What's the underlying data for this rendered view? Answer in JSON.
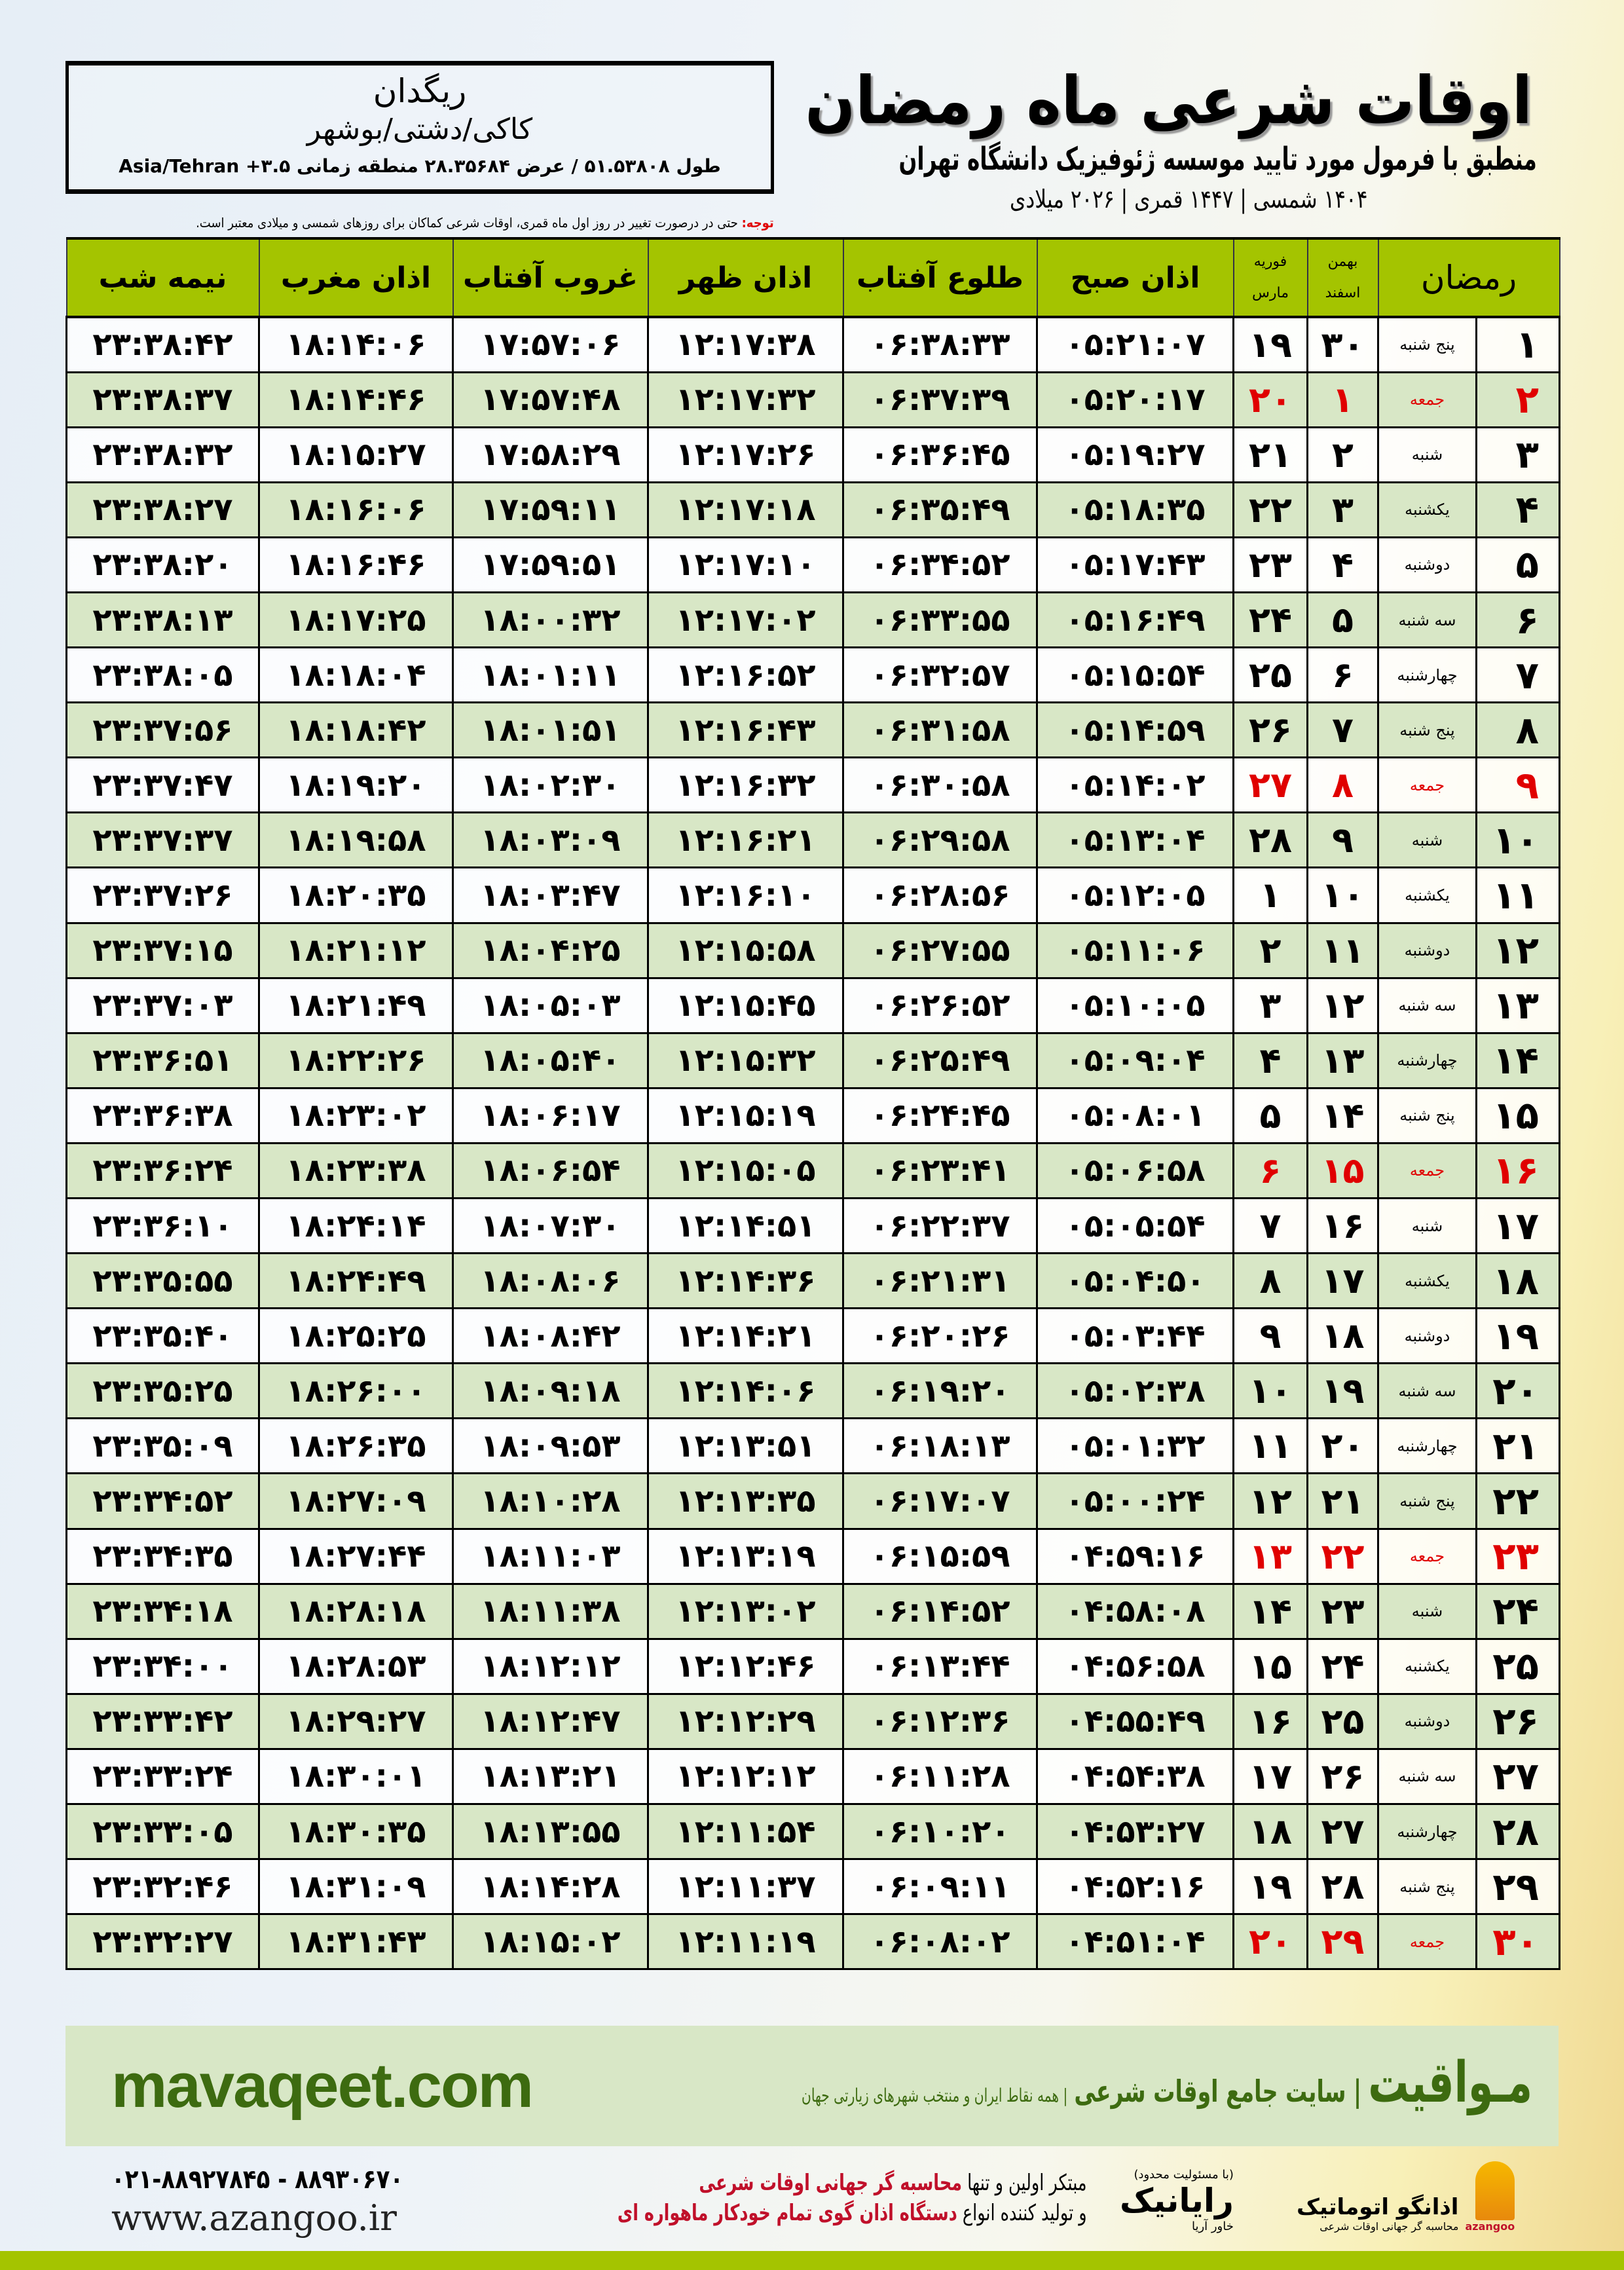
{
  "header": {
    "title": "اوقات شرعی ماه رمضان",
    "subtitle": "منطبق با فرمول مورد تایید موسسه ژئوفیزیک دانشگاه تهران",
    "dates": "۱۴۰۴ شمسی | ۱۴۴۷ قمری | ۲۰۲۶ میلادی"
  },
  "location": {
    "city": "ریگدان",
    "region": "کاکی/دشتی/بوشهر",
    "coords": "طول ۵۱.۵۳۸۰۸ / عرض ۲۸.۳۵۶۸۴ منطقه زمانی ۳.۵+ Asia/Tehran"
  },
  "note": {
    "label": "توجه:",
    "text": " حتی در درصورت تغییر در روز اول ماه قمری، اوقات شرعی کماکان برای روزهای شمسی و میلادی معتبر است."
  },
  "table": {
    "headers": {
      "ramadan": "رمضان",
      "shamsi_top": "بهمن",
      "shamsi_bottom": "اسفند",
      "miladi_top": "فوریه",
      "miladi_bottom": "مارس",
      "fajr": "اذان صبح",
      "sunrise": "طلوع آفتاب",
      "dhuhr": "اذان ظهر",
      "sunset": "غروب آفتاب",
      "maghrib": "اذان مغرب",
      "midnight": "نیمه شب"
    },
    "friday_color": "#e00000",
    "rows": [
      [
        "۱",
        "پنج شنبه",
        "۳۰",
        "۱۹",
        "۰۵:۲۱:۰۷",
        "۰۶:۳۸:۳۳",
        "۱۲:۱۷:۳۸",
        "۱۷:۵۷:۰۶",
        "۱۸:۱۴:۰۶",
        "۲۳:۳۸:۴۲"
      ],
      [
        "۲",
        "جمعه",
        "۱",
        "۲۰",
        "۰۵:۲۰:۱۷",
        "۰۶:۳۷:۳۹",
        "۱۲:۱۷:۳۲",
        "۱۷:۵۷:۴۸",
        "۱۸:۱۴:۴۶",
        "۲۳:۳۸:۳۷"
      ],
      [
        "۳",
        "شنبه",
        "۲",
        "۲۱",
        "۰۵:۱۹:۲۷",
        "۰۶:۳۶:۴۵",
        "۱۲:۱۷:۲۶",
        "۱۷:۵۸:۲۹",
        "۱۸:۱۵:۲۷",
        "۲۳:۳۸:۳۲"
      ],
      [
        "۴",
        "یکشنبه",
        "۳",
        "۲۲",
        "۰۵:۱۸:۳۵",
        "۰۶:۳۵:۴۹",
        "۱۲:۱۷:۱۸",
        "۱۷:۵۹:۱۱",
        "۱۸:۱۶:۰۶",
        "۲۳:۳۸:۲۷"
      ],
      [
        "۵",
        "دوشنبه",
        "۴",
        "۲۳",
        "۰۵:۱۷:۴۳",
        "۰۶:۳۴:۵۲",
        "۱۲:۱۷:۱۰",
        "۱۷:۵۹:۵۱",
        "۱۸:۱۶:۴۶",
        "۲۳:۳۸:۲۰"
      ],
      [
        "۶",
        "سه شنبه",
        "۵",
        "۲۴",
        "۰۵:۱۶:۴۹",
        "۰۶:۳۳:۵۵",
        "۱۲:۱۷:۰۲",
        "۱۸:۰۰:۳۲",
        "۱۸:۱۷:۲۵",
        "۲۳:۳۸:۱۳"
      ],
      [
        "۷",
        "چهارشنبه",
        "۶",
        "۲۵",
        "۰۵:۱۵:۵۴",
        "۰۶:۳۲:۵۷",
        "۱۲:۱۶:۵۲",
        "۱۸:۰۱:۱۱",
        "۱۸:۱۸:۰۴",
        "۲۳:۳۸:۰۵"
      ],
      [
        "۸",
        "پنج شنبه",
        "۷",
        "۲۶",
        "۰۵:۱۴:۵۹",
        "۰۶:۳۱:۵۸",
        "۱۲:۱۶:۴۳",
        "۱۸:۰۱:۵۱",
        "۱۸:۱۸:۴۲",
        "۲۳:۳۷:۵۶"
      ],
      [
        "۹",
        "جمعه",
        "۸",
        "۲۷",
        "۰۵:۱۴:۰۲",
        "۰۶:۳۰:۵۸",
        "۱۲:۱۶:۳۲",
        "۱۸:۰۲:۳۰",
        "۱۸:۱۹:۲۰",
        "۲۳:۳۷:۴۷"
      ],
      [
        "۱۰",
        "شنبه",
        "۹",
        "۲۸",
        "۰۵:۱۳:۰۴",
        "۰۶:۲۹:۵۸",
        "۱۲:۱۶:۲۱",
        "۱۸:۰۳:۰۹",
        "۱۸:۱۹:۵۸",
        "۲۳:۳۷:۳۷"
      ],
      [
        "۱۱",
        "یکشنبه",
        "۱۰",
        "۱",
        "۰۵:۱۲:۰۵",
        "۰۶:۲۸:۵۶",
        "۱۲:۱۶:۱۰",
        "۱۸:۰۳:۴۷",
        "۱۸:۲۰:۳۵",
        "۲۳:۳۷:۲۶"
      ],
      [
        "۱۲",
        "دوشنبه",
        "۱۱",
        "۲",
        "۰۵:۱۱:۰۶",
        "۰۶:۲۷:۵۵",
        "۱۲:۱۵:۵۸",
        "۱۸:۰۴:۲۵",
        "۱۸:۲۱:۱۲",
        "۲۳:۳۷:۱۵"
      ],
      [
        "۱۳",
        "سه شنبه",
        "۱۲",
        "۳",
        "۰۵:۱۰:۰۵",
        "۰۶:۲۶:۵۲",
        "۱۲:۱۵:۴۵",
        "۱۸:۰۵:۰۳",
        "۱۸:۲۱:۴۹",
        "۲۳:۳۷:۰۳"
      ],
      [
        "۱۴",
        "چهارشنبه",
        "۱۳",
        "۴",
        "۰۵:۰۹:۰۴",
        "۰۶:۲۵:۴۹",
        "۱۲:۱۵:۳۲",
        "۱۸:۰۵:۴۰",
        "۱۸:۲۲:۲۶",
        "۲۳:۳۶:۵۱"
      ],
      [
        "۱۵",
        "پنج شنبه",
        "۱۴",
        "۵",
        "۰۵:۰۸:۰۱",
        "۰۶:۲۴:۴۵",
        "۱۲:۱۵:۱۹",
        "۱۸:۰۶:۱۷",
        "۱۸:۲۳:۰۲",
        "۲۳:۳۶:۳۸"
      ],
      [
        "۱۶",
        "جمعه",
        "۱۵",
        "۶",
        "۰۵:۰۶:۵۸",
        "۰۶:۲۳:۴۱",
        "۱۲:۱۵:۰۵",
        "۱۸:۰۶:۵۴",
        "۱۸:۲۳:۳۸",
        "۲۳:۳۶:۲۴"
      ],
      [
        "۱۷",
        "شنبه",
        "۱۶",
        "۷",
        "۰۵:۰۵:۵۴",
        "۰۶:۲۲:۳۷",
        "۱۲:۱۴:۵۱",
        "۱۸:۰۷:۳۰",
        "۱۸:۲۴:۱۴",
        "۲۳:۳۶:۱۰"
      ],
      [
        "۱۸",
        "یکشنبه",
        "۱۷",
        "۸",
        "۰۵:۰۴:۵۰",
        "۰۶:۲۱:۳۱",
        "۱۲:۱۴:۳۶",
        "۱۸:۰۸:۰۶",
        "۱۸:۲۴:۴۹",
        "۲۳:۳۵:۵۵"
      ],
      [
        "۱۹",
        "دوشنبه",
        "۱۸",
        "۹",
        "۰۵:۰۳:۴۴",
        "۰۶:۲۰:۲۶",
        "۱۲:۱۴:۲۱",
        "۱۸:۰۸:۴۲",
        "۱۸:۲۵:۲۵",
        "۲۳:۳۵:۴۰"
      ],
      [
        "۲۰",
        "سه شنبه",
        "۱۹",
        "۱۰",
        "۰۵:۰۲:۳۸",
        "۰۶:۱۹:۲۰",
        "۱۲:۱۴:۰۶",
        "۱۸:۰۹:۱۸",
        "۱۸:۲۶:۰۰",
        "۲۳:۳۵:۲۵"
      ],
      [
        "۲۱",
        "چهارشنبه",
        "۲۰",
        "۱۱",
        "۰۵:۰۱:۳۲",
        "۰۶:۱۸:۱۳",
        "۱۲:۱۳:۵۱",
        "۱۸:۰۹:۵۳",
        "۱۸:۲۶:۳۵",
        "۲۳:۳۵:۰۹"
      ],
      [
        "۲۲",
        "پنج شنبه",
        "۲۱",
        "۱۲",
        "۰۵:۰۰:۲۴",
        "۰۶:۱۷:۰۷",
        "۱۲:۱۳:۳۵",
        "۱۸:۱۰:۲۸",
        "۱۸:۲۷:۰۹",
        "۲۳:۳۴:۵۲"
      ],
      [
        "۲۳",
        "جمعه",
        "۲۲",
        "۱۳",
        "۰۴:۵۹:۱۶",
        "۰۶:۱۵:۵۹",
        "۱۲:۱۳:۱۹",
        "۱۸:۱۱:۰۳",
        "۱۸:۲۷:۴۴",
        "۲۳:۳۴:۳۵"
      ],
      [
        "۲۴",
        "شنبه",
        "۲۳",
        "۱۴",
        "۰۴:۵۸:۰۸",
        "۰۶:۱۴:۵۲",
        "۱۲:۱۳:۰۲",
        "۱۸:۱۱:۳۸",
        "۱۸:۲۸:۱۸",
        "۲۳:۳۴:۱۸"
      ],
      [
        "۲۵",
        "یکشنبه",
        "۲۴",
        "۱۵",
        "۰۴:۵۶:۵۸",
        "۰۶:۱۳:۴۴",
        "۱۲:۱۲:۴۶",
        "۱۸:۱۲:۱۲",
        "۱۸:۲۸:۵۳",
        "۲۳:۳۴:۰۰"
      ],
      [
        "۲۶",
        "دوشنبه",
        "۲۵",
        "۱۶",
        "۰۴:۵۵:۴۹",
        "۰۶:۱۲:۳۶",
        "۱۲:۱۲:۲۹",
        "۱۸:۱۲:۴۷",
        "۱۸:۲۹:۲۷",
        "۲۳:۳۳:۴۲"
      ],
      [
        "۲۷",
        "سه شنبه",
        "۲۶",
        "۱۷",
        "۰۴:۵۴:۳۸",
        "۰۶:۱۱:۲۸",
        "۱۲:۱۲:۱۲",
        "۱۸:۱۳:۲۱",
        "۱۸:۳۰:۰۱",
        "۲۳:۳۳:۲۴"
      ],
      [
        "۲۸",
        "چهارشنبه",
        "۲۷",
        "۱۸",
        "۰۴:۵۳:۲۷",
        "۰۶:۱۰:۲۰",
        "۱۲:۱۱:۵۴",
        "۱۸:۱۳:۵۵",
        "۱۸:۳۰:۳۵",
        "۲۳:۳۳:۰۵"
      ],
      [
        "۲۹",
        "پنج شنبه",
        "۲۸",
        "۱۹",
        "۰۴:۵۲:۱۶",
        "۰۶:۰۹:۱۱",
        "۱۲:۱۱:۳۷",
        "۱۸:۱۴:۲۸",
        "۱۸:۳۱:۰۹",
        "۲۳:۳۲:۴۶"
      ],
      [
        "۳۰",
        "جمعه",
        "۲۹",
        "۲۰",
        "۰۴:۵۱:۰۴",
        "۰۶:۰۸:۰۲",
        "۱۲:۱۱:۱۹",
        "۱۸:۱۵:۰۲",
        "۱۸:۳۱:۴۳",
        "۲۳:۳۲:۲۷"
      ]
    ]
  },
  "footer": {
    "brand": "مـواقیت",
    "brand_tag": "| سایت جامع اوقات شرعی",
    "brand_sub": "| همه نقاط ایران و منتخب شهرهای زیارتی جهان",
    "site": "mavaqeet.com",
    "phone": "۰۲۱-۸۸۹۲۷۸۴۵ - ۸۸۹۳۰۶۷۰",
    "www": "www.azangoo.ir",
    "promo_1a": "مبتکر اولین و تنها ",
    "promo_1b": "محاسبه گر جهانی اوقات شرعی",
    "promo_2a": "و تولید کننده انواع ",
    "promo_2b": "دستگاه اذان گوی تمام خودکار ماهواره ای",
    "logo_rayanik": "رایانیک",
    "logo_rayanik_sub": "خاور آریا",
    "logo_rayanik_top": "(با مسئولیت محدود)",
    "logo_azangoo": "اذانگو اتوماتیک",
    "logo_azangoo_sub": "محاسبه گر جهانی اوقات شرعی",
    "logo_azangoo_en": "azangoo",
    "brand_green": "#3d6b10",
    "accent_green": "#a4c400",
    "promo_red": "#c0102a"
  }
}
